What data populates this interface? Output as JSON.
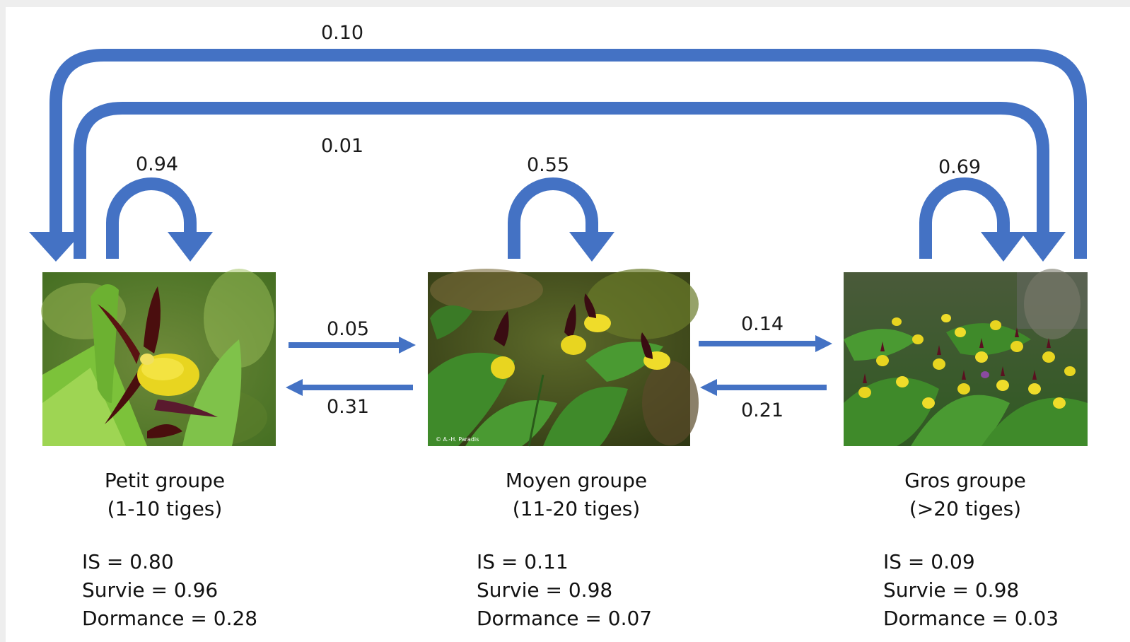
{
  "colors": {
    "arrow": "#4472C4",
    "background": "#ffffff"
  },
  "transitions": {
    "large_to_small": "0.10",
    "small_to_large": "0.01",
    "small_stay": "0.94",
    "medium_stay": "0.55",
    "large_stay": "0.69",
    "small_to_medium": "0.05",
    "medium_to_small": "0.31",
    "medium_to_large": "0.14",
    "large_to_medium": "0.21"
  },
  "groups": [
    {
      "name": "Petit groupe",
      "range": "(1-10 tiges)",
      "is": "IS = 0.80",
      "survie": "Survie = 0.96",
      "dormance": "Dormance = 0.28",
      "photo": "orchid-single-flower-photo"
    },
    {
      "name": "Moyen groupe",
      "range": "(11-20 tiges)",
      "is": "IS = 0.11",
      "survie": "Survie = 0.98",
      "dormance": "Dormance = 0.07",
      "photo": "orchid-small-clump-photo",
      "photo_credit": "© A.-H. Paradis"
    },
    {
      "name": "Gros groupe",
      "range": "(>20 tiges)",
      "is": "IS = 0.09",
      "survie": "Survie = 0.98",
      "dormance": "Dormance = 0.03",
      "photo": "orchid-large-clump-photo"
    }
  ]
}
